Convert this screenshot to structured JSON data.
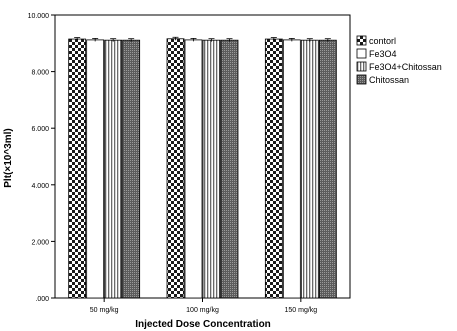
{
  "chart_data": {
    "type": "bar",
    "title": "",
    "xlabel": "Injected Dose Concentration",
    "ylabel": "Plt(×10^3ml)",
    "categories": [
      "50 mg/kg",
      "100 mg/kg",
      "150 mg/kg"
    ],
    "ylim": [
      0,
      10000
    ],
    "yticks": [
      0,
      2000,
      4000,
      6000,
      8000,
      10000
    ],
    "ytick_labels": [
      ".000",
      "2.000",
      "4.000",
      "6.000",
      "8.000",
      "10.000"
    ],
    "grid": false,
    "legend_position": "right",
    "series": [
      {
        "name": "contorl",
        "pattern": "checker",
        "values": [
          9150,
          9160,
          9150
        ]
      },
      {
        "name": "Fe3O4",
        "pattern": "white",
        "values": [
          9120,
          9120,
          9120
        ]
      },
      {
        "name": "Fe3O4+Chitossan",
        "pattern": "vertical-stripes",
        "values": [
          9110,
          9110,
          9110
        ]
      },
      {
        "name": "Chitossan",
        "pattern": "dense-grid",
        "values": [
          9110,
          9110,
          9110
        ]
      }
    ]
  }
}
